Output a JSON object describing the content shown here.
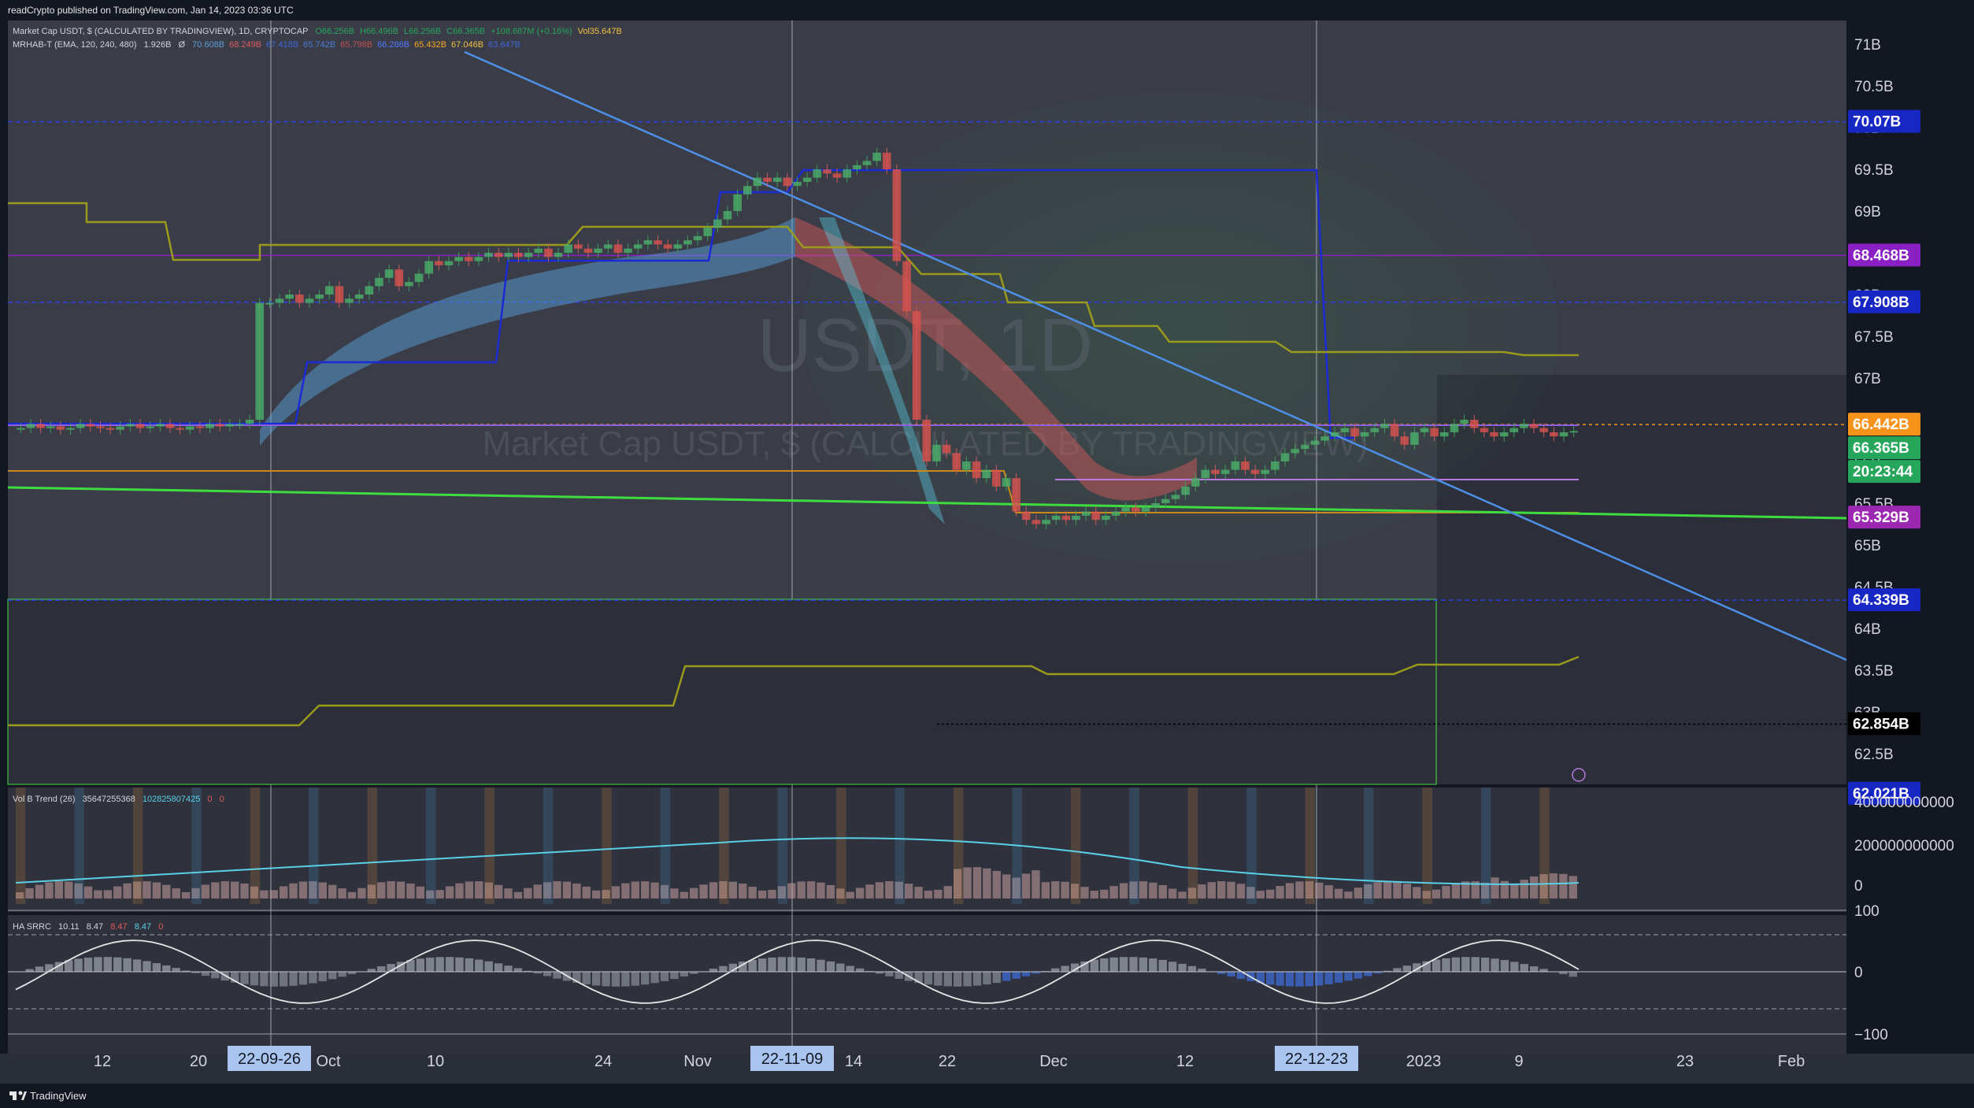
{
  "publisher": "readCrypto published on TradingView.com, Jan 14, 2023 03:36 UTC",
  "watermark": {
    "symbol": "USDT, 1D",
    "description": "Market Cap USDT, $ (CALCULATED BY TRADINGVIEW)"
  },
  "legend": {
    "main": {
      "name": "Market Cap USDT, $ (CALCULATED BY TRADINGVIEW), 1D, CRYPTOCAP",
      "o": "O66.256B",
      "h": "H66.496B",
      "l": "L66.256B",
      "c": "C66.365B",
      "chg": "+108.687M (+0.16%)",
      "vol": "Vol35.647B"
    },
    "indicator": {
      "name": "MRHAB-T (EMA, 120, 240, 480)",
      "v1": "1.926B",
      "sym": "Ø",
      "values": [
        {
          "t": "70.608B",
          "c": "#5b9bd5"
        },
        {
          "t": "68.249B",
          "c": "#e05a5a"
        },
        {
          "t": "67.418B",
          "c": "#3f67d8"
        },
        {
          "t": "65.742B",
          "c": "#4a7bd4"
        },
        {
          "t": "65.798B",
          "c": "#c05050"
        },
        {
          "t": "66.286B",
          "c": "#5577ff"
        },
        {
          "t": "65.432B",
          "c": "#f5a623"
        },
        {
          "t": "67.046B",
          "c": "#f0c040"
        },
        {
          "t": "63.647B",
          "c": "#3f67d8"
        }
      ]
    }
  },
  "footer": {
    "brand": "TradingView"
  },
  "chart_data": [
    {
      "type": "candlestick",
      "title": "Market Cap USDT, $ (CALCULATED BY TRADINGVIEW), 1D, CRYPTOCAP",
      "y_unit": "B",
      "ylim": [
        62.0,
        71.3
      ],
      "y_ticks": [
        "71B",
        "70.5B",
        "70B",
        "69.5B",
        "69B",
        "68.5B",
        "68B",
        "67.5B",
        "67B",
        "66.5B",
        "66B",
        "65.5B",
        "65B",
        "64.5B",
        "64B",
        "63.5B",
        "63B",
        "62.5B"
      ],
      "x_ticks": [
        "12",
        "20",
        "Oct",
        "10",
        "24",
        "Nov",
        "14",
        "22",
        "Dec",
        "12",
        "2023",
        "9",
        "23",
        "Feb"
      ],
      "x_highlight": [
        "22-09-26",
        "22-11-09",
        "22-12-23"
      ],
      "price_labels": [
        {
          "text": "70.07B",
          "value": 70.07,
          "bg": "#1727c4",
          "fg": "#ffffff"
        },
        {
          "text": "68.468B",
          "value": 68.468,
          "bg": "#8a1fc4",
          "fg": "#ffffff"
        },
        {
          "text": "67.908B",
          "value": 67.908,
          "bg": "#1727c4",
          "fg": "#ffffff"
        },
        {
          "text": "66.442B",
          "value": 66.442,
          "bg": "#f7931a",
          "fg": "#ffffff"
        },
        {
          "text": "66.365B",
          "value": 66.365,
          "bg": "#26a65b",
          "fg": "#ffffff"
        },
        {
          "text": "20:23:44",
          "value": null,
          "bg": "#26a65b",
          "fg": "#ffffff"
        },
        {
          "text": "65.329B",
          "value": 65.329,
          "bg": "#9c27b0",
          "fg": "#ffffff"
        },
        {
          "text": "64.339B",
          "value": 64.339,
          "bg": "#1727c4",
          "fg": "#ffffff"
        },
        {
          "text": "62.854B",
          "value": 62.854,
          "bg": "#000000",
          "fg": "#ffffff"
        },
        {
          "text": "62.021B",
          "value": 62.021,
          "bg": "#1727c4",
          "fg": "#ffffff"
        }
      ],
      "close_series": [
        66.4,
        66.45,
        66.4,
        66.42,
        66.38,
        66.4,
        66.45,
        66.42,
        66.4,
        66.38,
        66.42,
        66.45,
        66.4,
        66.42,
        66.45,
        66.4,
        66.38,
        66.42,
        66.4,
        66.45,
        66.42,
        66.45,
        66.45,
        66.5,
        67.9,
        67.9,
        67.95,
        68.0,
        67.9,
        67.95,
        68.0,
        68.1,
        67.9,
        67.95,
        68.0,
        68.1,
        68.2,
        68.3,
        68.1,
        68.15,
        68.25,
        68.4,
        68.35,
        68.4,
        68.45,
        68.4,
        68.45,
        68.5,
        68.45,
        68.5,
        68.45,
        68.5,
        68.55,
        68.45,
        68.5,
        68.6,
        68.55,
        68.5,
        68.55,
        68.6,
        68.5,
        68.55,
        68.6,
        68.65,
        68.6,
        68.55,
        68.6,
        68.65,
        68.7,
        68.8,
        68.9,
        69.0,
        69.2,
        69.3,
        69.4,
        69.35,
        69.4,
        69.3,
        69.35,
        69.4,
        69.5,
        69.45,
        69.4,
        69.5,
        69.55,
        69.6,
        69.7,
        69.5,
        68.4,
        67.8,
        66.5,
        66.0,
        66.2,
        66.1,
        65.9,
        66.0,
        65.8,
        65.9,
        65.7,
        65.8,
        65.4,
        65.3,
        65.25,
        65.3,
        65.35,
        65.3,
        65.35,
        65.4,
        65.3,
        65.35,
        65.4,
        65.45,
        65.4,
        65.45,
        65.5,
        65.55,
        65.6,
        65.7,
        65.8,
        65.9,
        65.85,
        65.9,
        66.0,
        65.9,
        65.85,
        65.9,
        66.0,
        66.1,
        66.15,
        66.2,
        66.25,
        66.3,
        66.35,
        66.4,
        66.3,
        66.35,
        66.4,
        66.45,
        66.3,
        66.2,
        66.35,
        66.4,
        66.3,
        66.35,
        66.45,
        66.5,
        66.4,
        66.35,
        66.3,
        66.35,
        66.4,
        66.45,
        66.4,
        66.35,
        66.3,
        66.35,
        66.365
      ]
    },
    {
      "type": "bar",
      "title": "Vol B Trend (26)",
      "values_text": [
        "35647255368",
        "102825807425",
        "0",
        "0"
      ],
      "y_ticks": [
        "400000000000",
        "200000000000",
        "0"
      ]
    },
    {
      "type": "line",
      "title": "HA SRRC",
      "values_text": [
        "10.11",
        "8.47",
        "8.47",
        "8.47",
        "0"
      ],
      "y_ticks": [
        "100",
        "0",
        "−100"
      ]
    }
  ]
}
